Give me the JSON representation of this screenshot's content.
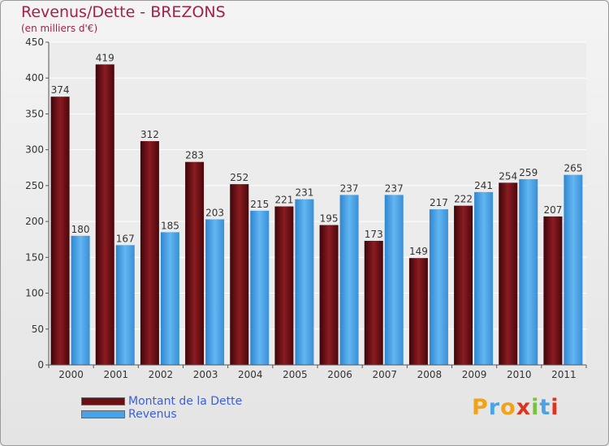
{
  "header": {
    "title": "Revenus/Dette - BREZONS",
    "subtitle": "(en milliers d'€)"
  },
  "legend": {
    "items": [
      {
        "label": "Montant de la Dette",
        "color": "#6b0f12"
      },
      {
        "label": "Revenus",
        "color": "#4aa3e6"
      }
    ]
  },
  "logo": {
    "text": "Proxiti"
  },
  "chart_data": {
    "type": "bar",
    "categories": [
      "2000",
      "2001",
      "2002",
      "2003",
      "2004",
      "2005",
      "2006",
      "2007",
      "2008",
      "2009",
      "2010",
      "2011"
    ],
    "series": [
      {
        "name": "Montant de la Dette",
        "color": "#6b0f12",
        "values": [
          374,
          419,
          312,
          283,
          252,
          221,
          195,
          173,
          149,
          222,
          254,
          207
        ]
      },
      {
        "name": "Revenus",
        "color": "#4aa3e6",
        "values": [
          180,
          167,
          185,
          203,
          215,
          231,
          237,
          237,
          217,
          241,
          259,
          265
        ]
      }
    ],
    "ylim": [
      0,
      450
    ],
    "yticks": [
      0,
      50,
      100,
      150,
      200,
      250,
      300,
      350,
      400,
      450
    ],
    "grid": true,
    "legend_position": "bottom-left"
  }
}
